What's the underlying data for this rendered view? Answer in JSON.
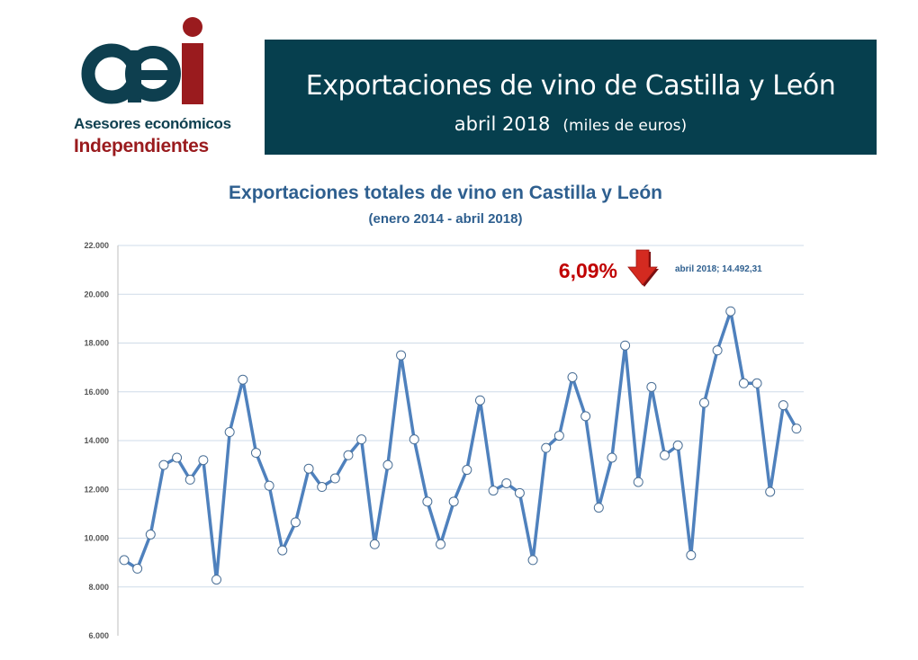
{
  "header": {
    "logo": {
      "letters": "aei",
      "line1": "Asesores económicos",
      "line2": "Independientes",
      "colors": {
        "teal": "#0e3f4f",
        "red": "#9a1b1e"
      }
    },
    "banner": {
      "title": "Exportaciones de vino de Castilla y León",
      "period": "abril 2018",
      "unit": "(miles de euros)",
      "background": "#063f4e"
    }
  },
  "chart_data": {
    "type": "line",
    "title": "Exportaciones totales de vino en Castilla y León",
    "subtitle": "(enero 2014 - abril 2018)",
    "xlabel": "",
    "ylabel": "",
    "ylim": [
      6000,
      22000
    ],
    "yticks": [
      "6.000",
      "8.000",
      "10.000",
      "12.000",
      "14.000",
      "16.000",
      "18.000",
      "20.000",
      "22.000"
    ],
    "grid": true,
    "line_color": "#4f81bd",
    "marker": "white circle",
    "x_start": "enero 2014",
    "x_end": "abril 2018",
    "series": [
      {
        "values": [
          9100,
          8750,
          10150,
          13000,
          13300,
          12400,
          13200,
          8300,
          14350,
          16500,
          13500,
          12150,
          9500,
          10650,
          12850,
          12100,
          12450,
          13400,
          14050,
          9750,
          13000,
          17500,
          14050,
          11500,
          9750,
          11500,
          12800,
          15650,
          11950,
          12250,
          11850,
          9100,
          13700,
          14200,
          16600,
          15000,
          11250,
          13300,
          17900,
          12300,
          16200,
          13400,
          13800,
          9300,
          15550,
          17700,
          19300,
          16350,
          16350,
          11900,
          15450,
          14492.31
        ]
      }
    ],
    "annotations": {
      "change_pct": "6,09%",
      "change_color": "#c00000",
      "arrow": "down",
      "last_point_label": "abril 2018; 14.492,31"
    }
  }
}
